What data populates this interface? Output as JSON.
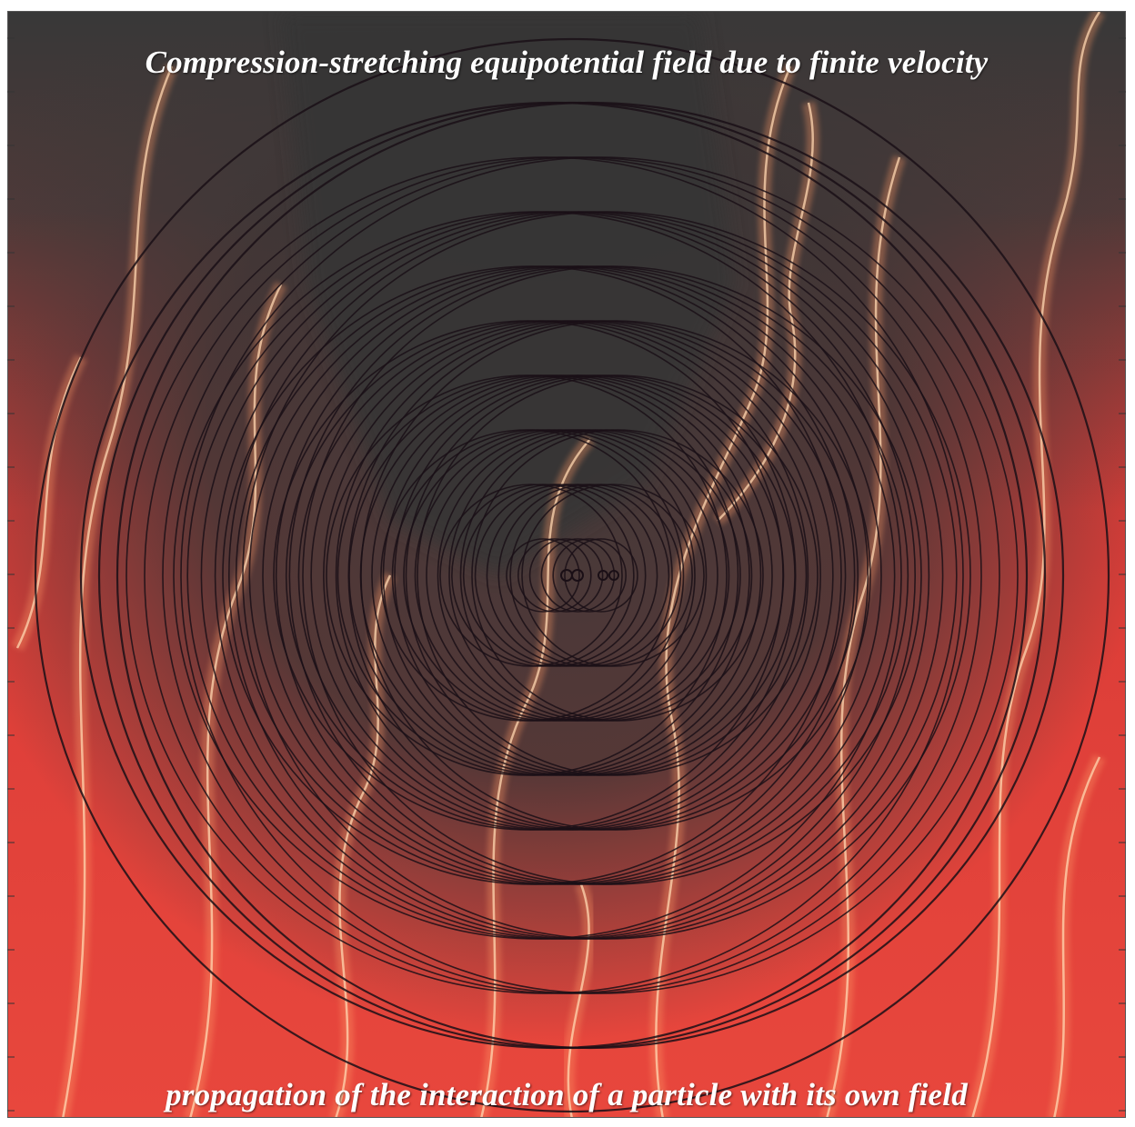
{
  "figure": {
    "title_top": "Compression-stretching equipotential field due to finite velocity",
    "title_bottom": "propagation of the interaction of a particle with its own field",
    "colors": {
      "background_red": "#e0403c",
      "background_dark": "#3a3a3a",
      "flame_light": "#ffd7b0",
      "ring_stroke": "#1a0f16",
      "caption_text": "#ffffff"
    }
  }
}
